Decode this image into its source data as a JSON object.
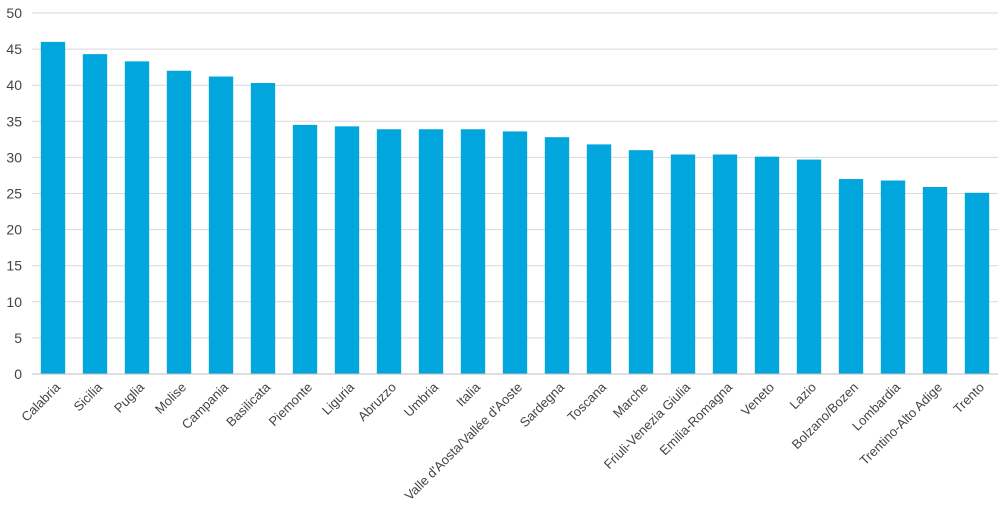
{
  "chart_data": {
    "type": "bar",
    "title": "",
    "xlabel": "",
    "ylabel": "",
    "ylim": [
      0,
      50
    ],
    "yticks": [
      0,
      5,
      10,
      15,
      20,
      25,
      30,
      35,
      40,
      45,
      50
    ],
    "grid": true,
    "legend": "none",
    "bar_color": "#00a6dc",
    "categories": [
      "Calabria",
      "Sicilia",
      "Puglia",
      "Molise",
      "Campania",
      "Basilicata",
      "Piemonte",
      "Liguria",
      "Abruzzo",
      "Umbria",
      "Italia",
      "Valle d'Aosta/Vallée d'Aoste",
      "Sardegna",
      "Toscana",
      "Marche",
      "Friuli-Venezia Giulia",
      "Emilia-Romagna",
      "Veneto",
      "Lazio",
      "Bolzano/Bozen",
      "Lombardia",
      "Trentino-Alto Adige",
      "Trento"
    ],
    "values": [
      46.0,
      44.3,
      43.3,
      42.0,
      41.2,
      40.3,
      34.5,
      34.3,
      33.9,
      33.9,
      33.9,
      33.6,
      32.8,
      31.8,
      31.0,
      30.4,
      30.4,
      30.1,
      29.7,
      27.0,
      26.8,
      25.9,
      25.1
    ]
  }
}
